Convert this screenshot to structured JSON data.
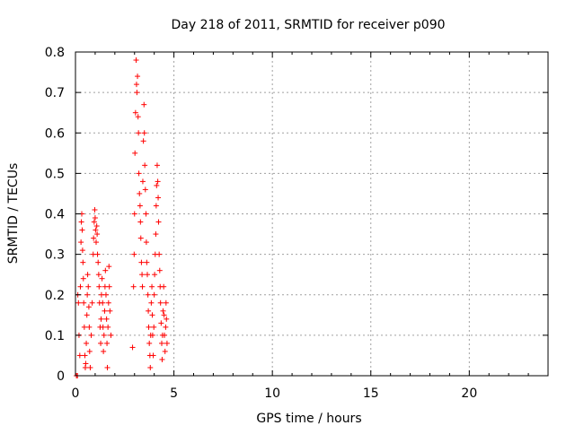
{
  "chart_data": {
    "type": "scatter",
    "title": "Day 218 of 2011, SRMTID for receiver p090",
    "xlabel": "GPS time / hours",
    "ylabel": "SRMTID / TECUs",
    "xlim": [
      0,
      24
    ],
    "ylim": [
      0,
      0.8
    ],
    "grid": true,
    "x_ticks": [
      0,
      5,
      10,
      15,
      20
    ],
    "x_tick_labels": [
      "0",
      "5",
      "10",
      "15",
      "20"
    ],
    "y_ticks": [
      0,
      0.1,
      0.2,
      0.3,
      0.4,
      0.5,
      0.6,
      0.7,
      0.8
    ],
    "y_tick_labels": [
      "0",
      "0.1",
      "0.2",
      "0.3",
      "0.4",
      "0.5",
      "0.6",
      "0.7",
      "0.8"
    ],
    "marker": "+",
    "marker_color": "#ff0000",
    "series": [
      {
        "name": "SRMTID",
        "points": [
          [
            0.05,
            0.0
          ],
          [
            0.1,
            0.0
          ],
          [
            0.12,
            0.2
          ],
          [
            0.15,
            0.18
          ],
          [
            0.18,
            0.1
          ],
          [
            0.22,
            0.05
          ],
          [
            0.25,
            0.22
          ],
          [
            0.28,
            0.33
          ],
          [
            0.3,
            0.38
          ],
          [
            0.32,
            0.4
          ],
          [
            0.34,
            0.36
          ],
          [
            0.36,
            0.31
          ],
          [
            0.38,
            0.28
          ],
          [
            0.4,
            0.24
          ],
          [
            0.42,
            0.18
          ],
          [
            0.45,
            0.12
          ],
          [
            0.48,
            0.05
          ],
          [
            0.5,
            0.02
          ],
          [
            0.52,
            0.03
          ],
          [
            0.55,
            0.08
          ],
          [
            0.58,
            0.15
          ],
          [
            0.6,
            0.2
          ],
          [
            0.62,
            0.25
          ],
          [
            0.65,
            0.22
          ],
          [
            0.68,
            0.17
          ],
          [
            0.7,
            0.12
          ],
          [
            0.72,
            0.06
          ],
          [
            0.75,
            0.02
          ],
          [
            0.8,
            0.1
          ],
          [
            0.85,
            0.18
          ],
          [
            0.9,
            0.3
          ],
          [
            0.92,
            0.34
          ],
          [
            0.95,
            0.38
          ],
          [
            0.98,
            0.41
          ],
          [
            1.0,
            0.39
          ],
          [
            1.02,
            0.36
          ],
          [
            1.05,
            0.33
          ],
          [
            1.08,
            0.37
          ],
          [
            1.1,
            0.35
          ],
          [
            1.12,
            0.3
          ],
          [
            1.15,
            0.28
          ],
          [
            1.18,
            0.25
          ],
          [
            1.2,
            0.22
          ],
          [
            1.22,
            0.18
          ],
          [
            1.25,
            0.12
          ],
          [
            1.28,
            0.08
          ],
          [
            1.3,
            0.14
          ],
          [
            1.32,
            0.2
          ],
          [
            1.35,
            0.24
          ],
          [
            1.38,
            0.18
          ],
          [
            1.4,
            0.12
          ],
          [
            1.42,
            0.06
          ],
          [
            1.45,
            0.1
          ],
          [
            1.48,
            0.16
          ],
          [
            1.5,
            0.22
          ],
          [
            1.52,
            0.26
          ],
          [
            1.55,
            0.2
          ],
          [
            1.58,
            0.14
          ],
          [
            1.6,
            0.08
          ],
          [
            1.62,
            0.02
          ],
          [
            1.65,
            0.12
          ],
          [
            1.68,
            0.18
          ],
          [
            1.7,
            0.27
          ],
          [
            1.72,
            0.22
          ],
          [
            1.75,
            0.16
          ],
          [
            1.8,
            0.1
          ],
          [
            2.9,
            0.07
          ],
          [
            2.95,
            0.22
          ],
          [
            2.98,
            0.3
          ],
          [
            3.0,
            0.4
          ],
          [
            3.02,
            0.55
          ],
          [
            3.05,
            0.65
          ],
          [
            3.08,
            0.78
          ],
          [
            3.1,
            0.72
          ],
          [
            3.12,
            0.7
          ],
          [
            3.15,
            0.74
          ],
          [
            3.18,
            0.64
          ],
          [
            3.2,
            0.6
          ],
          [
            3.22,
            0.5
          ],
          [
            3.25,
            0.45
          ],
          [
            3.28,
            0.42
          ],
          [
            3.3,
            0.38
          ],
          [
            3.32,
            0.34
          ],
          [
            3.35,
            0.28
          ],
          [
            3.38,
            0.25
          ],
          [
            3.4,
            0.22
          ],
          [
            3.42,
            0.48
          ],
          [
            3.45,
            0.58
          ],
          [
            3.48,
            0.67
          ],
          [
            3.5,
            0.6
          ],
          [
            3.52,
            0.52
          ],
          [
            3.55,
            0.46
          ],
          [
            3.58,
            0.4
          ],
          [
            3.6,
            0.33
          ],
          [
            3.62,
            0.28
          ],
          [
            3.65,
            0.25
          ],
          [
            3.68,
            0.2
          ],
          [
            3.7,
            0.16
          ],
          [
            3.72,
            0.12
          ],
          [
            3.75,
            0.08
          ],
          [
            3.78,
            0.05
          ],
          [
            3.8,
            0.02
          ],
          [
            3.82,
            0.1
          ],
          [
            3.85,
            0.18
          ],
          [
            3.88,
            0.22
          ],
          [
            3.9,
            0.15
          ],
          [
            3.92,
            0.1
          ],
          [
            3.95,
            0.05
          ],
          [
            3.98,
            0.12
          ],
          [
            4.0,
            0.2
          ],
          [
            4.02,
            0.25
          ],
          [
            4.05,
            0.3
          ],
          [
            4.08,
            0.35
          ],
          [
            4.1,
            0.42
          ],
          [
            4.12,
            0.47
          ],
          [
            4.15,
            0.52
          ],
          [
            4.18,
            0.48
          ],
          [
            4.2,
            0.44
          ],
          [
            4.22,
            0.38
          ],
          [
            4.25,
            0.3
          ],
          [
            4.28,
            0.26
          ],
          [
            4.3,
            0.22
          ],
          [
            4.32,
            0.18
          ],
          [
            4.35,
            0.13
          ],
          [
            4.38,
            0.08
          ],
          [
            4.4,
            0.04
          ],
          [
            4.42,
            0.1
          ],
          [
            4.45,
            0.16
          ],
          [
            4.48,
            0.22
          ],
          [
            4.5,
            0.15
          ],
          [
            4.52,
            0.1
          ],
          [
            4.55,
            0.06
          ],
          [
            4.58,
            0.12
          ],
          [
            4.6,
            0.18
          ],
          [
            4.62,
            0.14
          ],
          [
            4.65,
            0.08
          ]
        ]
      }
    ]
  }
}
